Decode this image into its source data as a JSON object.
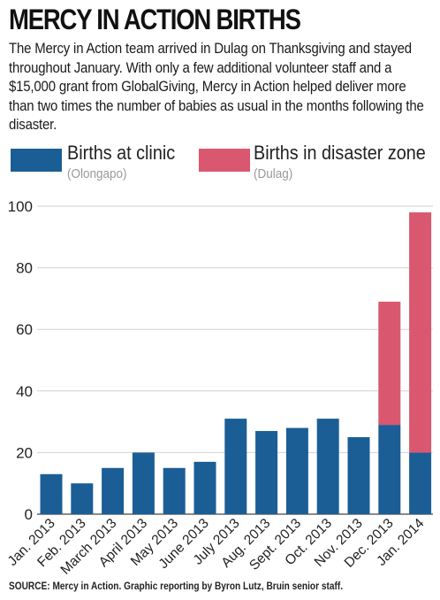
{
  "title": "MERCY IN ACTION BIRTHS",
  "intro": "The Mercy in Action team arrived in Dulag on Thanksgiving and stayed throughout January. With only a few additional volunteer staff and a $15,000 grant from GlobalGiving, Mercy in Action helped deliver more than two times the number of babies as usual in the months following the disaster.",
  "source": "SOURCE: Mercy in Action. Graphic reporting by Byron Lutz, Bruin senior staff.",
  "colors": {
    "clinic": "#1b5e96",
    "disaster": "#d9586f"
  },
  "chart_data": {
    "type": "bar",
    "stacked": true,
    "categories": [
      "Jan. 2013",
      "Feb. 2013",
      "March 2013",
      "April 2013",
      "May 2013",
      "June 2013",
      "July 2013",
      "Aug. 2013",
      "Sept. 2013",
      "Oct. 2013",
      "Nov. 2013",
      "Dec. 2013",
      "Jan. 2014"
    ],
    "series": [
      {
        "name": "Births at clinic",
        "note": "(Olongapo)",
        "color": "#1b5e96",
        "values": [
          13,
          10,
          15,
          20,
          15,
          17,
          31,
          27,
          28,
          31,
          25,
          29,
          20
        ]
      },
      {
        "name": "Births in disaster zone",
        "note": "(Dulag)",
        "color": "#d9586f",
        "values": [
          0,
          0,
          0,
          0,
          0,
          0,
          0,
          0,
          0,
          0,
          0,
          40,
          78
        ]
      }
    ],
    "title": "MERCY IN ACTION BIRTHS",
    "xlabel": "",
    "ylabel": "",
    "ylim": [
      0,
      100
    ],
    "yticks": [
      0,
      20,
      40,
      60,
      80,
      100
    ],
    "grid": true,
    "legend": "top"
  }
}
